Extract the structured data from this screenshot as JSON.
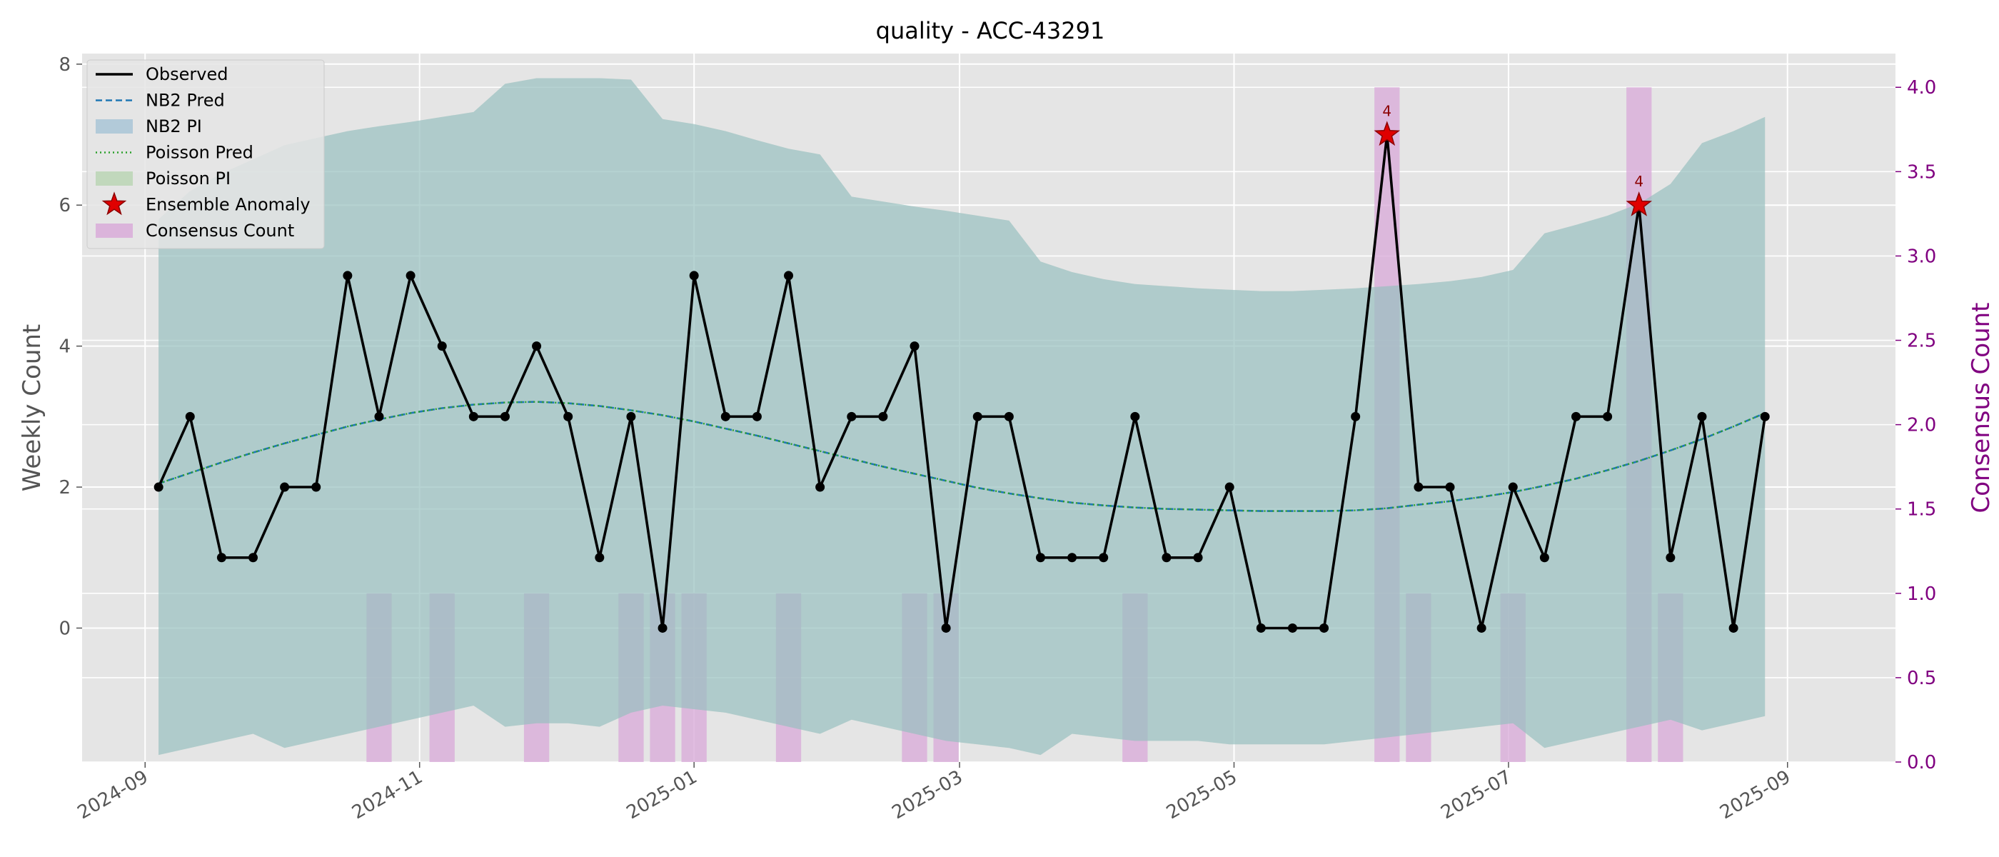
{
  "chart_data": {
    "type": "line",
    "title": "quality - ACC-43291",
    "ylabel": "Weekly Count",
    "y2label": "Consensus Count",
    "ylim": [
      -1.9,
      8.15
    ],
    "y2lim": [
      0.0,
      4.2
    ],
    "yticks": [
      0,
      2,
      4,
      6,
      8
    ],
    "y2ticks": [
      0.0,
      0.5,
      1.0,
      1.5,
      2.0,
      2.5,
      3.0,
      3.5,
      4.0
    ],
    "xticks": [
      "2024-09",
      "2024-11",
      "2025-01",
      "2025-03",
      "2025-05",
      "2025-07",
      "2025-09"
    ],
    "xlim": [
      "2024-08-18",
      "2025-09-25"
    ],
    "grid": true,
    "legend_position": "upper left",
    "legend": [
      "Observed",
      "NB2 Pred",
      "NB2 PI",
      "Poisson Pred",
      "Poisson PI",
      "Ensemble Anomaly",
      "Consensus Count"
    ],
    "colors": {
      "observed": "#000000",
      "nb2_pred": "#1f77b4",
      "nb2_pi": "#8fb8d0",
      "poisson_pred": "#2ca02c",
      "poisson_pi": "#a8cfa0",
      "anomaly": "#e00000",
      "consensus": "#d8a8d8",
      "right_axis": "#800080",
      "plot_bg": "#e5e5e5"
    },
    "x": [
      "2024-09-04",
      "2024-09-11",
      "2024-09-18",
      "2024-09-25",
      "2024-10-02",
      "2024-10-09",
      "2024-10-16",
      "2024-10-23",
      "2024-10-30",
      "2024-11-06",
      "2024-11-13",
      "2024-11-20",
      "2024-11-27",
      "2024-12-04",
      "2024-12-11",
      "2024-12-18",
      "2024-12-25",
      "2025-01-01",
      "2025-01-08",
      "2025-01-15",
      "2025-01-22",
      "2025-01-29",
      "2025-02-05",
      "2025-02-12",
      "2025-02-19",
      "2025-02-26",
      "2025-03-05",
      "2025-03-12",
      "2025-03-19",
      "2025-03-26",
      "2025-04-02",
      "2025-04-09",
      "2025-04-16",
      "2025-04-23",
      "2025-04-30",
      "2025-05-07",
      "2025-05-14",
      "2025-05-21",
      "2025-05-28",
      "2025-06-04",
      "2025-06-11",
      "2025-06-18",
      "2025-06-25",
      "2025-07-02",
      "2025-07-09",
      "2025-07-16",
      "2025-07-23",
      "2025-07-30",
      "2025-08-06",
      "2025-08-13",
      "2025-08-20",
      "2025-08-27"
    ],
    "series": [
      {
        "name": "Observed",
        "values": [
          2,
          3,
          1,
          1,
          2,
          2,
          5,
          3,
          5,
          4,
          3,
          3,
          4,
          3,
          1,
          3,
          0,
          5,
          3,
          3,
          5,
          2,
          3,
          3,
          4,
          0,
          3,
          3,
          1,
          1,
          1,
          3,
          1,
          1,
          2,
          0,
          0,
          0,
          3,
          7,
          2,
          2,
          0,
          2,
          1,
          3,
          3,
          6,
          1,
          3,
          0,
          3
        ]
      },
      {
        "name": "NB2 Pred",
        "values": [
          2.05,
          2.2,
          2.35,
          2.49,
          2.62,
          2.74,
          2.86,
          2.96,
          3.05,
          3.12,
          3.17,
          3.2,
          3.21,
          3.19,
          3.15,
          3.09,
          3.02,
          2.93,
          2.83,
          2.73,
          2.62,
          2.51,
          2.4,
          2.29,
          2.19,
          2.09,
          1.99,
          1.91,
          1.84,
          1.78,
          1.74,
          1.71,
          1.69,
          1.68,
          1.67,
          1.66,
          1.66,
          1.66,
          1.67,
          1.7,
          1.75,
          1.8,
          1.86,
          1.93,
          2.02,
          2.12,
          2.24,
          2.37,
          2.52,
          2.68,
          2.86,
          3.05
        ]
      },
      {
        "name": "NB2 PI",
        "lower": [
          -1.8,
          -1.7,
          -1.6,
          -1.5,
          -1.7,
          -1.6,
          -1.5,
          -1.4,
          -1.3,
          -1.2,
          -1.1,
          -1.4,
          -1.35,
          -1.35,
          -1.4,
          -1.2,
          -1.1,
          -1.15,
          -1.2,
          -1.3,
          -1.4,
          -1.5,
          -1.3,
          -1.4,
          -1.5,
          -1.6,
          -1.65,
          -1.7,
          -1.8,
          -1.5,
          -1.55,
          -1.6,
          -1.6,
          -1.6,
          -1.65,
          -1.65,
          -1.65,
          -1.65,
          -1.6,
          -1.55,
          -1.5,
          -1.45,
          -1.4,
          -1.35,
          -1.7,
          -1.6,
          -1.5,
          -1.4,
          -1.3,
          -1.45,
          -1.35,
          -1.25
        ],
        "upper": [
          5.8,
          6.2,
          6.45,
          6.65,
          6.85,
          6.95,
          7.05,
          7.12,
          7.18,
          7.25,
          7.32,
          7.72,
          7.8,
          7.8,
          7.8,
          7.78,
          7.22,
          7.15,
          7.05,
          6.92,
          6.8,
          6.72,
          6.12,
          6.05,
          5.98,
          5.92,
          5.85,
          5.78,
          5.2,
          5.05,
          4.95,
          4.88,
          4.85,
          4.82,
          4.8,
          4.78,
          4.78,
          4.8,
          4.82,
          4.85,
          4.88,
          4.92,
          4.98,
          5.08,
          5.6,
          5.72,
          5.85,
          6.02,
          6.3,
          6.88,
          7.05,
          7.25
        ]
      },
      {
        "name": "Poisson Pred",
        "values": [
          2.05,
          2.2,
          2.35,
          2.49,
          2.62,
          2.74,
          2.86,
          2.96,
          3.05,
          3.12,
          3.17,
          3.2,
          3.21,
          3.19,
          3.15,
          3.09,
          3.02,
          2.93,
          2.83,
          2.73,
          2.62,
          2.51,
          2.4,
          2.29,
          2.19,
          2.09,
          1.99,
          1.91,
          1.84,
          1.78,
          1.74,
          1.71,
          1.69,
          1.68,
          1.67,
          1.66,
          1.66,
          1.66,
          1.67,
          1.7,
          1.75,
          1.8,
          1.86,
          1.93,
          2.02,
          2.12,
          2.24,
          2.37,
          2.52,
          2.68,
          2.86,
          3.05
        ]
      },
      {
        "name": "Poisson PI",
        "lower": [
          -1.8,
          -1.7,
          -1.6,
          -1.5,
          -1.7,
          -1.6,
          -1.5,
          -1.4,
          -1.3,
          -1.2,
          -1.1,
          -1.4,
          -1.35,
          -1.35,
          -1.4,
          -1.2,
          -1.1,
          -1.15,
          -1.2,
          -1.3,
          -1.4,
          -1.5,
          -1.3,
          -1.4,
          -1.5,
          -1.6,
          -1.65,
          -1.7,
          -1.8,
          -1.5,
          -1.55,
          -1.6,
          -1.6,
          -1.6,
          -1.65,
          -1.65,
          -1.65,
          -1.65,
          -1.6,
          -1.55,
          -1.5,
          -1.45,
          -1.4,
          -1.35,
          -1.7,
          -1.6,
          -1.5,
          -1.4,
          -1.3,
          -1.45,
          -1.35,
          -1.25
        ],
        "upper": [
          5.8,
          6.2,
          6.45,
          6.65,
          6.85,
          6.95,
          7.05,
          7.12,
          7.18,
          7.25,
          7.32,
          7.72,
          7.8,
          7.8,
          7.8,
          7.78,
          7.22,
          7.15,
          7.05,
          6.92,
          6.8,
          6.72,
          6.12,
          6.05,
          5.98,
          5.92,
          5.85,
          5.78,
          5.2,
          5.05,
          4.95,
          4.88,
          4.85,
          4.82,
          4.8,
          4.78,
          4.78,
          4.8,
          4.82,
          4.85,
          4.88,
          4.92,
          4.98,
          5.08,
          5.6,
          5.72,
          5.85,
          6.02,
          6.3,
          6.88,
          7.05,
          7.25
        ]
      }
    ],
    "consensus": [
      {
        "x": "2024-10-23",
        "value": 1
      },
      {
        "x": "2024-11-06",
        "value": 1
      },
      {
        "x": "2024-11-27",
        "value": 1
      },
      {
        "x": "2024-12-18",
        "value": 1
      },
      {
        "x": "2024-12-25",
        "value": 1
      },
      {
        "x": "2025-01-01",
        "value": 1
      },
      {
        "x": "2025-01-22",
        "value": 1
      },
      {
        "x": "2025-02-19",
        "value": 1
      },
      {
        "x": "2025-02-26",
        "value": 1
      },
      {
        "x": "2025-04-09",
        "value": 1
      },
      {
        "x": "2025-06-04",
        "value": 4
      },
      {
        "x": "2025-06-11",
        "value": 1
      },
      {
        "x": "2025-07-02",
        "value": 1
      },
      {
        "x": "2025-07-30",
        "value": 4
      },
      {
        "x": "2025-08-06",
        "value": 1
      }
    ],
    "anomalies": [
      {
        "x": "2025-06-04",
        "y": 7,
        "label": "4"
      },
      {
        "x": "2025-07-30",
        "y": 6,
        "label": "4"
      }
    ]
  }
}
